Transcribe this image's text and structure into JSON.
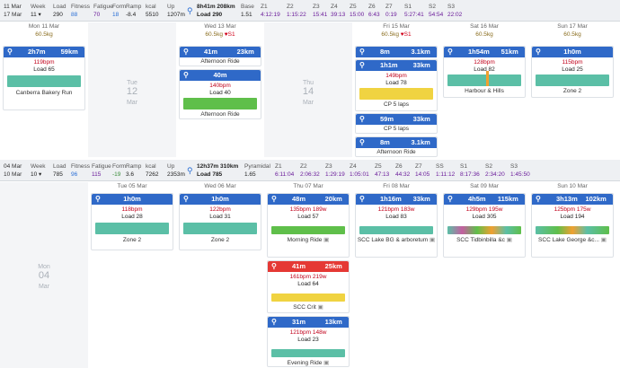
{
  "week1": {
    "range_start": "11 Mar",
    "range_end": "17 Mar",
    "summary": {
      "week_label": "Week",
      "week_val": "11",
      "load_label": "Load",
      "load_val": "290",
      "fitness_label": "Fitness",
      "fitness_val": "88",
      "fatigue_label": "Fatigue",
      "fatigue_val": "70",
      "form_label": "Form",
      "form_val": "18",
      "ramp_label": "Ramp",
      "ramp_val": "-8.4",
      "kcal_label": "kcal",
      "kcal_val": "5510",
      "up_label": "Up",
      "up_val": "1207m",
      "ride_time": "8h41m",
      "ride_dist": "208km",
      "ride_load": "Load 290",
      "base_label": "Base",
      "base_val": "1.51",
      "zones": [
        {
          "z": "Z1",
          "v": "4:12:19"
        },
        {
          "z": "Z2",
          "v": "1:15:22"
        },
        {
          "z": "Z3",
          "v": "15:41"
        },
        {
          "z": "Z4",
          "v": "39:13"
        },
        {
          "z": "Z5",
          "v": "15:00"
        },
        {
          "z": "Z6",
          "v": "6:43"
        },
        {
          "z": "Z7",
          "v": "0:19"
        },
        {
          "z": "S1",
          "v": "5:27:41"
        },
        {
          "z": "S2",
          "v": "54:54"
        },
        {
          "z": "S3",
          "v": "22:02"
        }
      ]
    },
    "days": {
      "mon": {
        "header": "Mon 11 Mar",
        "weight": "60.5kg",
        "act": {
          "dur": "2h7m",
          "dist": "59km",
          "hr": "119bpm",
          "load": "Load 65",
          "name": "Canberra Bakery Run"
        }
      },
      "tue": {
        "dow": "Tue",
        "num": "12",
        "mon": "Mar"
      },
      "wed": {
        "header": "Wed 13 Mar",
        "weight": "60.5kg",
        "heart": "♥S1",
        "act1": {
          "dur": "41m",
          "dist": "23km",
          "name": "Afternoon Ride"
        },
        "act2": {
          "dur": "40m",
          "hr": "140bpm",
          "load": "Load 40",
          "name": "Afternoon Ride"
        }
      },
      "thu": {
        "dow": "Thu",
        "num": "14",
        "mon": "Mar"
      },
      "fri": {
        "header": "Fri 15 Mar",
        "weight": "60.5kg",
        "heart": "♥S1",
        "act1": {
          "dur": "8m",
          "dist": "3.1km"
        },
        "act2": {
          "dur": "1h1m",
          "dist": "33km",
          "hr": "149bpm",
          "load": "Load 78",
          "name": "CP 5 laps"
        },
        "act3": {
          "dur": "59m",
          "dist": "33km",
          "name": "CP 5 laps"
        },
        "act4": {
          "dur": "8m",
          "dist": "3.1km",
          "name": "Afternoon Ride"
        }
      },
      "sat": {
        "header": "Sat 16 Mar",
        "weight": "60.5kg",
        "act": {
          "dur": "1h54m",
          "dist": "51km",
          "hr": "128bpm",
          "load": "Load 82",
          "name": "Harbour & Hills"
        }
      },
      "sun": {
        "header": "Sun 17 Mar",
        "weight": "60.5kg",
        "act": {
          "dur": "1h0m",
          "hr": "115bpm",
          "load": "Load 25",
          "name": "Zone 2"
        }
      }
    }
  },
  "week2": {
    "range_start": "04 Mar",
    "range_end": "10 Mar",
    "summary": {
      "week_label": "Week",
      "week_val": "10",
      "load_label": "Load",
      "load_val": "785",
      "fitness_label": "Fitness",
      "fitness_val": "96",
      "fatigue_label": "Fatigue",
      "fatigue_val": "115",
      "form_label": "Form",
      "form_val": "-19",
      "ramp_label": "Ramp",
      "ramp_val": "3.6",
      "kcal_label": "kcal",
      "kcal_val": "7262",
      "up_label": "Up",
      "up_val": "2353m",
      "ride_time": "12h37m",
      "ride_dist": "310km",
      "ride_load": "Load 785",
      "base_label": "Pyramidal",
      "base_val": "1.65",
      "zones": [
        {
          "z": "Z1",
          "v": "6:11:04"
        },
        {
          "z": "Z2",
          "v": "2:06:32"
        },
        {
          "z": "Z3",
          "v": "1:29:19"
        },
        {
          "z": "Z4",
          "v": "1:05:01"
        },
        {
          "z": "Z5",
          "v": "47:13"
        },
        {
          "z": "Z6",
          "v": "44:32"
        },
        {
          "z": "Z7",
          "v": "14:05"
        },
        {
          "z": "SS",
          "v": "1:11:12"
        },
        {
          "z": "S1",
          "v": "8:17:36"
        },
        {
          "z": "S2",
          "v": "2:34:20"
        },
        {
          "z": "S3",
          "v": "1:45:50"
        }
      ]
    },
    "days": {
      "mon": {
        "dow": "Mon",
        "num": "04",
        "mon": "Mar"
      },
      "tue": {
        "header": "Tue 05 Mar",
        "act": {
          "dur": "1h0m",
          "hr": "118bpm",
          "load": "Load 28",
          "name": "Zone 2"
        }
      },
      "wed": {
        "header": "Wed 06 Mar",
        "act": {
          "dur": "1h0m",
          "hr": "122bpm",
          "load": "Load 31",
          "name": "Zone 2"
        }
      },
      "thu": {
        "header": "Thu 07 Mar",
        "act1": {
          "dur": "48m",
          "dist": "20km",
          "hrw": "135bpm 189w",
          "load": "Load 57",
          "name": "Morning Ride"
        },
        "act2": {
          "dur": "41m",
          "dist": "25km",
          "hrw": "161bpm 219w",
          "load": "Load 64",
          "name": "SCC Crit"
        },
        "act3": {
          "dur": "31m",
          "dist": "13km",
          "hrw": "121bpm 148w",
          "load": "Load 23",
          "name": "Evening Ride"
        }
      },
      "fri": {
        "header": "Fri 08 Mar",
        "act": {
          "dur": "1h16m",
          "dist": "33km",
          "hrw": "121bpm 183w",
          "load": "Load 83",
          "name": "SCC Lake BG & arboretum"
        }
      },
      "sat": {
        "header": "Sat 09 Mar",
        "act": {
          "dur": "4h5m",
          "dist": "115km",
          "hrw": "129bpm 195w",
          "load": "Load 305",
          "name": "SCC Tidbinbilla &c"
        }
      },
      "sun": {
        "header": "Sun 10 Mar",
        "act": {
          "dur": "3h13m",
          "dist": "102km",
          "hrw": "125bpm 175w",
          "load": "Load 194",
          "name": "SCC Lake George &c..."
        }
      }
    }
  },
  "colors": {
    "accent": "#2f69c8",
    "race": "#e53935",
    "hr": "#c0001a"
  },
  "icons": {
    "activity": "bike-icon",
    "calendar_toggle": "chevron-down-icon",
    "strava": "strava-icon"
  }
}
